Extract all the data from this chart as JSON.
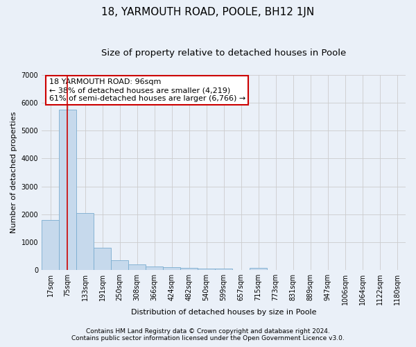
{
  "title": "18, YARMOUTH ROAD, POOLE, BH12 1JN",
  "subtitle": "Size of property relative to detached houses in Poole",
  "xlabel": "Distribution of detached houses by size in Poole",
  "ylabel": "Number of detached properties",
  "bar_labels": [
    "17sqm",
    "75sqm",
    "133sqm",
    "191sqm",
    "250sqm",
    "308sqm",
    "366sqm",
    "424sqm",
    "482sqm",
    "540sqm",
    "599sqm",
    "657sqm",
    "715sqm",
    "773sqm",
    "831sqm",
    "889sqm",
    "947sqm",
    "1006sqm",
    "1064sqm",
    "1122sqm",
    "1180sqm"
  ],
  "bar_values": [
    1800,
    5750,
    2050,
    790,
    340,
    200,
    120,
    90,
    80,
    50,
    50,
    0,
    80,
    0,
    0,
    0,
    0,
    0,
    0,
    0,
    0
  ],
  "bar_color": "#c6d9ec",
  "bar_edgecolor": "#7aadd0",
  "red_line_x": 0.98,
  "annotation_text": "18 YARMOUTH ROAD: 96sqm\n← 38% of detached houses are smaller (4,219)\n61% of semi-detached houses are larger (6,766) →",
  "annotation_box_color": "#ffffff",
  "annotation_box_edgecolor": "#cc0000",
  "ylim": [
    0,
    7000
  ],
  "yticks": [
    0,
    1000,
    2000,
    3000,
    4000,
    5000,
    6000,
    7000
  ],
  "grid_color": "#cccccc",
  "background_color": "#eaf0f8",
  "plot_background": "#eaf0f8",
  "footer_line1": "Contains HM Land Registry data © Crown copyright and database right 2024.",
  "footer_line2": "Contains public sector information licensed under the Open Government Licence v3.0.",
  "title_fontsize": 11,
  "subtitle_fontsize": 9.5,
  "axis_label_fontsize": 8,
  "tick_fontsize": 7,
  "annotation_fontsize": 8,
  "footer_fontsize": 6.5
}
